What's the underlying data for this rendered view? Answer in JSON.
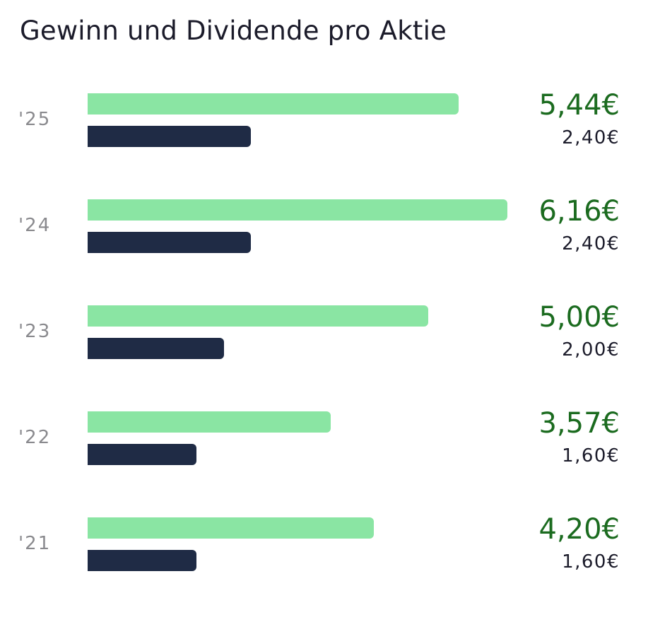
{
  "chart_data": {
    "type": "bar",
    "orientation": "horizontal",
    "title": "Gewinn und Dividende pro Aktie",
    "categories": [
      "'25",
      "'24",
      "'23",
      "'22",
      "'21"
    ],
    "series": [
      {
        "values": [
          5.44,
          6.16,
          5.0,
          3.57,
          4.2
        ],
        "labels": [
          "5,44€",
          "6,16€",
          "5,00€",
          "3,57€",
          "4,20€"
        ],
        "color": "#8ae5a3",
        "label_color": "#1b6b1f"
      },
      {
        "values": [
          2.4,
          2.4,
          2.0,
          1.6,
          1.6
        ],
        "labels": [
          "2,40€",
          "2,40€",
          "2,00€",
          "1,60€",
          "1,60€"
        ],
        "color": "#1f2b45",
        "label_color": "#1b1b2a"
      }
    ],
    "xlim": [
      0,
      6.16
    ],
    "grid": false,
    "legend": "none"
  }
}
